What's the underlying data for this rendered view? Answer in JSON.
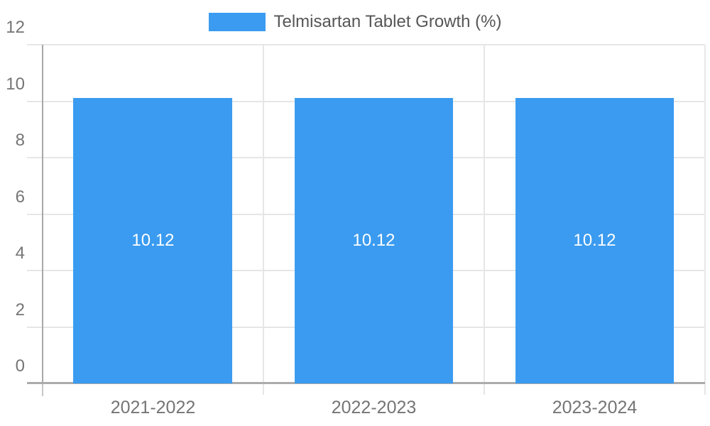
{
  "chart_data": {
    "type": "bar",
    "title": "Telmisartan Tablet Growth (%)",
    "categories": [
      "2021-2022",
      "2022-2023",
      "2023-2024"
    ],
    "values": [
      10.12,
      10.12,
      10.12
    ],
    "bar_labels": [
      "10.12",
      "10.12",
      "10.12"
    ],
    "ytick_labels": [
      "0",
      "2",
      "4",
      "6",
      "8",
      "10",
      "12"
    ],
    "yticks": [
      0,
      2,
      4,
      6,
      8,
      10,
      12
    ],
    "ylim": [
      0,
      12
    ],
    "xlabel": "",
    "ylabel": "",
    "grid": true,
    "legend_position": "top"
  },
  "legend": {
    "series_label": "Telmisartan Tablet Growth (%)"
  },
  "colors": {
    "bar": "#3a9bf0",
    "grid": "#e6e6e6",
    "plot_right_border": "#e8e8e8",
    "y_axis_line": "#a8a8a8",
    "x_axis_line": "#ababab",
    "axis_stub": "#c6c6c6",
    "tick_text": "#757575",
    "legend_text": "#565656",
    "bar_value_text": "#ffffff",
    "background": "#ffffff"
  }
}
